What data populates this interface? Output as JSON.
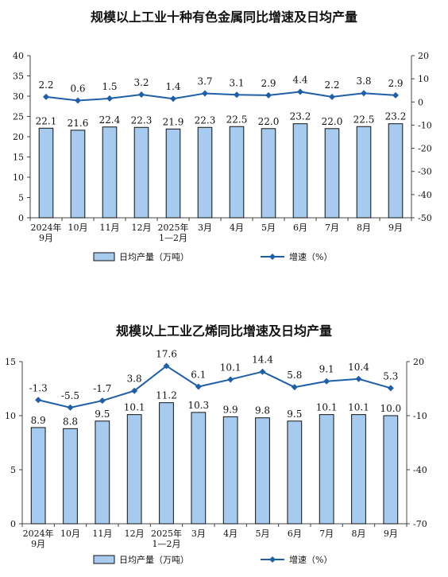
{
  "chart_data": [
    {
      "type": "bar",
      "title": "规模以上工业十种有色金属同比增速及日均产量",
      "categories": [
        "2024年\n9月",
        "10月",
        "11月",
        "12月",
        "2025年\n1—2月",
        "3月",
        "4月",
        "5月",
        "6月",
        "7月",
        "8月",
        "9月"
      ],
      "series": [
        {
          "name": "日均产量（万吨）",
          "type": "bar",
          "axis": "left",
          "values": [
            22.1,
            21.6,
            22.4,
            22.3,
            21.9,
            22.3,
            22.5,
            22.0,
            23.2,
            22.0,
            22.5,
            23.2
          ],
          "color": "#a6cbee"
        },
        {
          "name": "增速（%）",
          "type": "line",
          "axis": "right",
          "values": [
            2.2,
            0.6,
            1.5,
            3.2,
            1.4,
            3.7,
            3.1,
            2.9,
            4.4,
            2.2,
            3.8,
            2.9
          ],
          "color": "#1f5fa8"
        }
      ],
      "y_left": {
        "range": [
          0,
          40
        ],
        "ticks": [
          0,
          5,
          10,
          15,
          20,
          25,
          30,
          35,
          40
        ]
      },
      "y_right": {
        "range": [
          -50,
          20
        ],
        "ticks": [
          -50,
          -40,
          -30,
          -20,
          -10,
          0,
          10,
          20
        ]
      },
      "grid": false,
      "legend_position": "bottom"
    },
    {
      "type": "bar",
      "title": "规模以上工业乙烯同比增速及日均产量",
      "categories": [
        "2024年\n9月",
        "10月",
        "11月",
        "12月",
        "2025年\n1—2月",
        "3月",
        "4月",
        "5月",
        "6月",
        "7月",
        "8月",
        "9月"
      ],
      "series": [
        {
          "name": "日均产量（万吨）",
          "type": "bar",
          "axis": "left",
          "values": [
            8.9,
            8.8,
            9.5,
            10.1,
            11.2,
            10.3,
            9.9,
            9.8,
            9.5,
            10.1,
            10.1,
            10.0
          ],
          "color": "#a6cbee"
        },
        {
          "name": "增速（%）",
          "type": "line",
          "axis": "right",
          "values": [
            -1.3,
            -5.5,
            -1.7,
            3.8,
            17.6,
            6.1,
            10.1,
            14.4,
            5.8,
            9.1,
            10.4,
            5.3
          ],
          "color": "#1f5fa8"
        }
      ],
      "y_left": {
        "range": [
          0,
          15
        ],
        "ticks": [
          0,
          5,
          10,
          15
        ]
      },
      "y_right": {
        "range": [
          -70,
          20
        ],
        "ticks": [
          -70,
          -40,
          -10,
          20
        ]
      },
      "grid": false,
      "legend_position": "bottom"
    }
  ]
}
